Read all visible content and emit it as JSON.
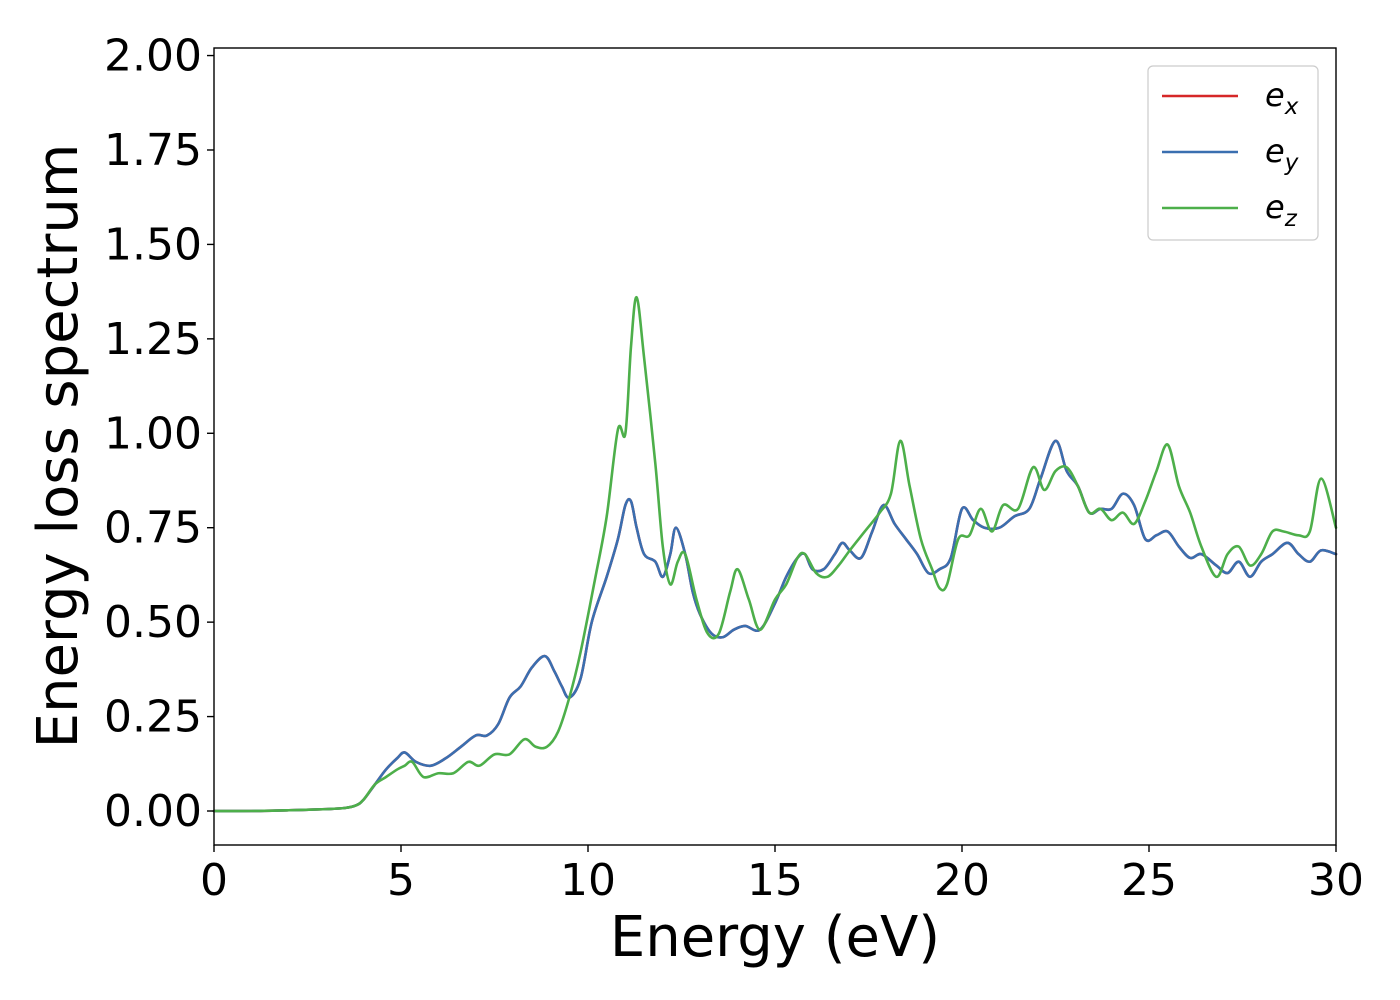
{
  "chart_data": {
    "type": "line",
    "title": "",
    "xlabel": "Energy (eV)",
    "ylabel": "Energy loss spectrum",
    "xlim": [
      0,
      30
    ],
    "ylim": [
      -0.09,
      2.02
    ],
    "xticks": [
      0,
      5,
      10,
      15,
      20,
      25,
      30
    ],
    "yticks": [
      0.0,
      0.25,
      0.5,
      0.75,
      1.0,
      1.25,
      1.5,
      1.75,
      2.0
    ],
    "ytick_decimals": 2,
    "grid": false,
    "legend_position": "top-right",
    "series": [
      {
        "name": "x",
        "color": "#d62728",
        "x": [
          0,
          1,
          2,
          3,
          3.5,
          3.8,
          4.0,
          4.3,
          4.6,
          4.9,
          5.1,
          5.4,
          5.8,
          6.2,
          6.6,
          7.0,
          7.3,
          7.6,
          7.9,
          8.2,
          8.5,
          8.85,
          9.1,
          9.3,
          9.5,
          9.8,
          10.1,
          10.5,
          10.8,
          11.0,
          11.15,
          11.3,
          11.5,
          11.8,
          12.0,
          12.2,
          12.35,
          12.6,
          12.8,
          13.0,
          13.3,
          13.6,
          13.9,
          14.2,
          14.6,
          15.0,
          15.3,
          15.6,
          15.8,
          16.0,
          16.3,
          16.6,
          16.8,
          17.0,
          17.3,
          17.6,
          17.9,
          18.2,
          18.5,
          18.8,
          19.1,
          19.4,
          19.7,
          20.0,
          20.3,
          20.6,
          21.0,
          21.4,
          21.8,
          22.1,
          22.5,
          22.8,
          23.1,
          23.4,
          23.7,
          24.0,
          24.3,
          24.6,
          24.9,
          25.2,
          25.5,
          25.8,
          26.1,
          26.4,
          26.8,
          27.1,
          27.4,
          27.7,
          28.0,
          28.3,
          28.7,
          29.0,
          29.3,
          29.6,
          30.0
        ],
        "y": [
          0.0,
          0.0,
          0.002,
          0.005,
          0.008,
          0.015,
          0.03,
          0.07,
          0.11,
          0.14,
          0.155,
          0.13,
          0.12,
          0.14,
          0.17,
          0.2,
          0.2,
          0.23,
          0.3,
          0.33,
          0.38,
          0.41,
          0.37,
          0.33,
          0.3,
          0.35,
          0.5,
          0.62,
          0.72,
          0.81,
          0.82,
          0.75,
          0.68,
          0.66,
          0.62,
          0.68,
          0.75,
          0.68,
          0.58,
          0.52,
          0.47,
          0.46,
          0.48,
          0.49,
          0.48,
          0.55,
          0.62,
          0.67,
          0.68,
          0.64,
          0.64,
          0.68,
          0.71,
          0.69,
          0.67,
          0.74,
          0.81,
          0.76,
          0.72,
          0.68,
          0.63,
          0.64,
          0.67,
          0.8,
          0.77,
          0.75,
          0.75,
          0.78,
          0.8,
          0.88,
          0.98,
          0.9,
          0.86,
          0.79,
          0.8,
          0.8,
          0.84,
          0.81,
          0.72,
          0.73,
          0.74,
          0.7,
          0.67,
          0.68,
          0.65,
          0.63,
          0.66,
          0.62,
          0.66,
          0.68,
          0.71,
          0.68,
          0.66,
          0.69,
          0.68
        ]
      },
      {
        "name": "y",
        "color": "#3a6fb0",
        "x": [
          0,
          1,
          2,
          3,
          3.5,
          3.8,
          4.0,
          4.3,
          4.6,
          4.9,
          5.1,
          5.4,
          5.8,
          6.2,
          6.6,
          7.0,
          7.3,
          7.6,
          7.9,
          8.2,
          8.5,
          8.85,
          9.1,
          9.3,
          9.5,
          9.8,
          10.1,
          10.5,
          10.8,
          11.0,
          11.15,
          11.3,
          11.5,
          11.8,
          12.0,
          12.2,
          12.35,
          12.6,
          12.8,
          13.0,
          13.3,
          13.6,
          13.9,
          14.2,
          14.6,
          15.0,
          15.3,
          15.6,
          15.8,
          16.0,
          16.3,
          16.6,
          16.8,
          17.0,
          17.3,
          17.6,
          17.9,
          18.2,
          18.5,
          18.8,
          19.1,
          19.4,
          19.7,
          20.0,
          20.3,
          20.6,
          21.0,
          21.4,
          21.8,
          22.1,
          22.5,
          22.8,
          23.1,
          23.4,
          23.7,
          24.0,
          24.3,
          24.6,
          24.9,
          25.2,
          25.5,
          25.8,
          26.1,
          26.4,
          26.8,
          27.1,
          27.4,
          27.7,
          28.0,
          28.3,
          28.7,
          29.0,
          29.3,
          29.6,
          30.0
        ],
        "y": [
          0.0,
          0.0,
          0.002,
          0.005,
          0.008,
          0.015,
          0.03,
          0.07,
          0.11,
          0.14,
          0.155,
          0.13,
          0.12,
          0.14,
          0.17,
          0.2,
          0.2,
          0.23,
          0.3,
          0.33,
          0.38,
          0.41,
          0.37,
          0.33,
          0.3,
          0.35,
          0.5,
          0.62,
          0.72,
          0.81,
          0.82,
          0.75,
          0.68,
          0.66,
          0.62,
          0.68,
          0.75,
          0.68,
          0.58,
          0.52,
          0.47,
          0.46,
          0.48,
          0.49,
          0.48,
          0.55,
          0.62,
          0.67,
          0.68,
          0.64,
          0.64,
          0.68,
          0.71,
          0.69,
          0.67,
          0.74,
          0.81,
          0.76,
          0.72,
          0.68,
          0.63,
          0.64,
          0.67,
          0.8,
          0.77,
          0.75,
          0.75,
          0.78,
          0.8,
          0.88,
          0.98,
          0.9,
          0.86,
          0.79,
          0.8,
          0.8,
          0.84,
          0.81,
          0.72,
          0.73,
          0.74,
          0.7,
          0.67,
          0.68,
          0.65,
          0.63,
          0.66,
          0.62,
          0.66,
          0.68,
          0.71,
          0.68,
          0.66,
          0.69,
          0.68
        ]
      },
      {
        "name": "z",
        "color": "#4daf4a",
        "x": [
          0,
          1,
          2,
          3,
          3.5,
          3.8,
          4.0,
          4.3,
          4.6,
          4.9,
          5.1,
          5.3,
          5.6,
          6.0,
          6.4,
          6.8,
          7.1,
          7.5,
          7.9,
          8.3,
          8.6,
          8.9,
          9.2,
          9.5,
          9.8,
          10.2,
          10.5,
          10.8,
          11.0,
          11.15,
          11.3,
          11.5,
          11.8,
          12.0,
          12.2,
          12.4,
          12.6,
          12.9,
          13.2,
          13.5,
          13.8,
          14.0,
          14.3,
          14.6,
          15.0,
          15.3,
          15.6,
          15.8,
          16.1,
          16.4,
          16.7,
          17.0,
          17.4,
          17.8,
          18.1,
          18.35,
          18.6,
          18.9,
          19.2,
          19.4,
          19.6,
          19.9,
          20.2,
          20.5,
          20.8,
          21.1,
          21.5,
          21.9,
          22.2,
          22.5,
          22.8,
          23.1,
          23.4,
          23.7,
          24.0,
          24.3,
          24.6,
          24.9,
          25.2,
          25.5,
          25.8,
          26.1,
          26.4,
          26.8,
          27.1,
          27.4,
          27.7,
          28.0,
          28.3,
          28.6,
          29.0,
          29.3,
          29.6,
          30.0
        ],
        "y": [
          0.0,
          0.0,
          0.002,
          0.005,
          0.008,
          0.015,
          0.03,
          0.07,
          0.09,
          0.11,
          0.12,
          0.13,
          0.09,
          0.1,
          0.1,
          0.13,
          0.12,
          0.15,
          0.15,
          0.19,
          0.17,
          0.17,
          0.21,
          0.3,
          0.42,
          0.62,
          0.78,
          1.01,
          1.0,
          1.23,
          1.36,
          1.2,
          0.92,
          0.7,
          0.6,
          0.66,
          0.68,
          0.56,
          0.47,
          0.47,
          0.58,
          0.64,
          0.56,
          0.48,
          0.56,
          0.6,
          0.67,
          0.68,
          0.63,
          0.62,
          0.65,
          0.69,
          0.74,
          0.79,
          0.84,
          0.98,
          0.86,
          0.72,
          0.64,
          0.59,
          0.6,
          0.72,
          0.73,
          0.8,
          0.74,
          0.81,
          0.8,
          0.91,
          0.85,
          0.9,
          0.91,
          0.86,
          0.79,
          0.8,
          0.77,
          0.79,
          0.76,
          0.82,
          0.9,
          0.97,
          0.86,
          0.79,
          0.7,
          0.62,
          0.68,
          0.7,
          0.65,
          0.68,
          0.74,
          0.74,
          0.73,
          0.74,
          0.88,
          0.75
        ]
      }
    ]
  }
}
